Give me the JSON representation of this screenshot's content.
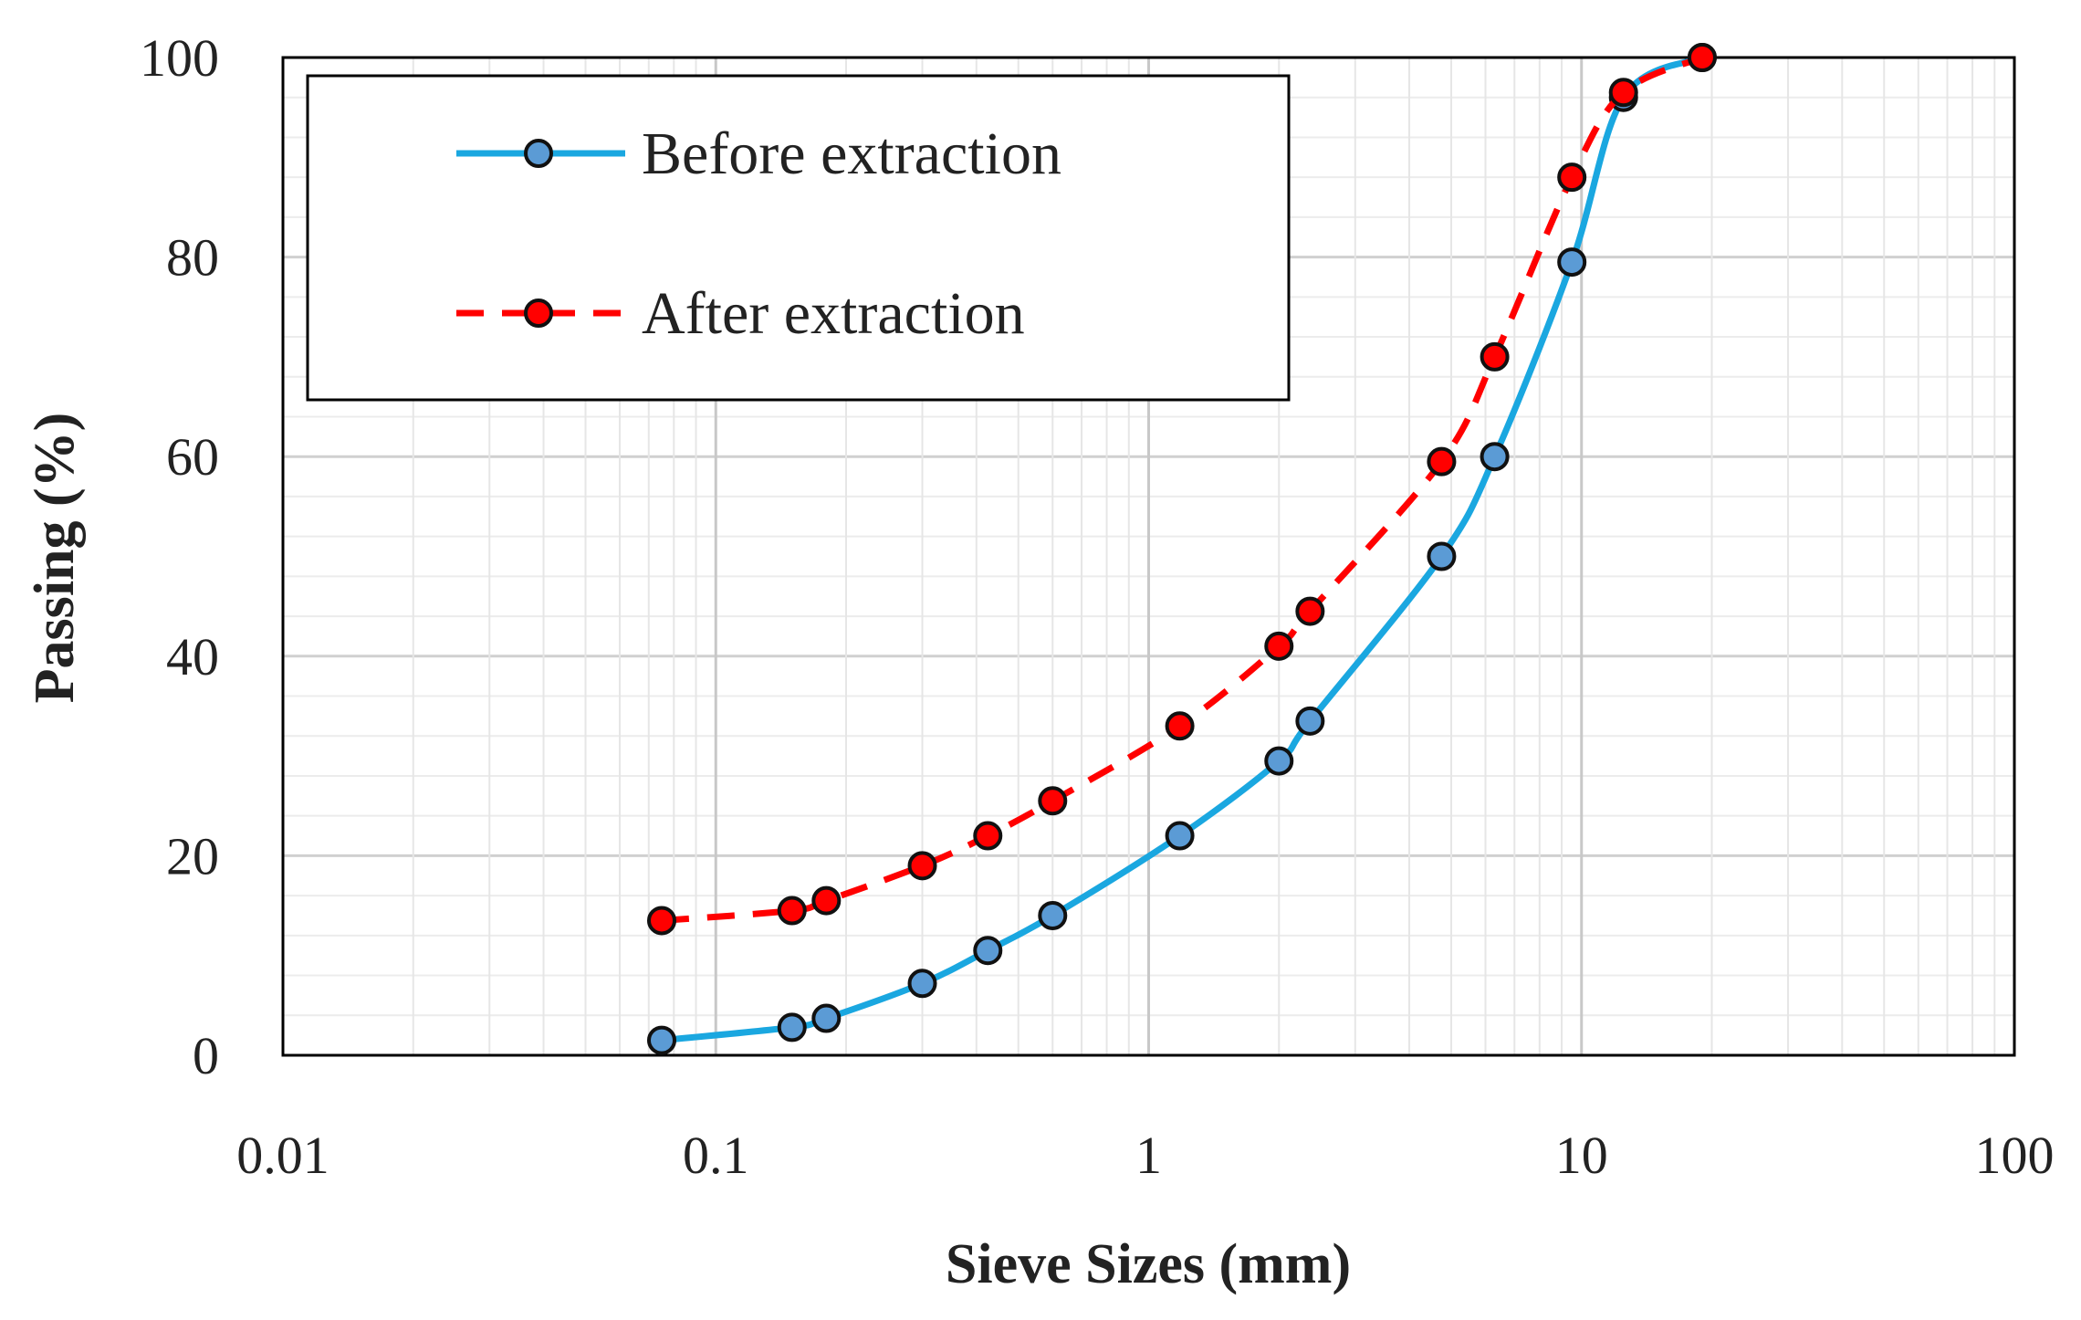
{
  "chart_data": {
    "type": "line",
    "title": "",
    "xlabel": "Sieve Sizes (mm)",
    "ylabel": "Passing (%)",
    "xscale": "log",
    "xlim": [
      0.01,
      100
    ],
    "ylim": [
      0,
      100
    ],
    "xticks": [
      0.01,
      0.1,
      1,
      10,
      100
    ],
    "xtick_labels": [
      "0.01",
      "0.1",
      "1",
      "10",
      "100"
    ],
    "yticks": [
      0,
      20,
      40,
      60,
      80,
      100
    ],
    "ytick_labels": [
      "0",
      "20",
      "40",
      "60",
      "80",
      "100"
    ],
    "grid": true,
    "legend_position": "top-left",
    "series": [
      {
        "name": "Before extraction",
        "color": "#1aa7e0",
        "marker_color": "#5b9bd5",
        "line_style": "solid",
        "x": [
          0.075,
          0.15,
          0.18,
          0.3,
          0.425,
          0.6,
          1.18,
          2,
          2.36,
          4.75,
          6.3,
          9.5,
          12.5,
          19
        ],
        "y": [
          1.5,
          2.8,
          3.7,
          7.2,
          10.5,
          14,
          22,
          29.5,
          33.5,
          50,
          60,
          79.5,
          96,
          100
        ]
      },
      {
        "name": "After extraction",
        "color": "#ff0000",
        "marker_color": "#ff0000",
        "line_style": "dashed",
        "x": [
          0.075,
          0.15,
          0.18,
          0.3,
          0.425,
          0.6,
          1.18,
          2,
          2.36,
          4.75,
          6.3,
          9.5,
          12.5,
          19
        ],
        "y": [
          13.5,
          14.5,
          15.5,
          19,
          22,
          25.5,
          33,
          41,
          44.5,
          59.5,
          70,
          88,
          96.5,
          100
        ]
      }
    ]
  }
}
